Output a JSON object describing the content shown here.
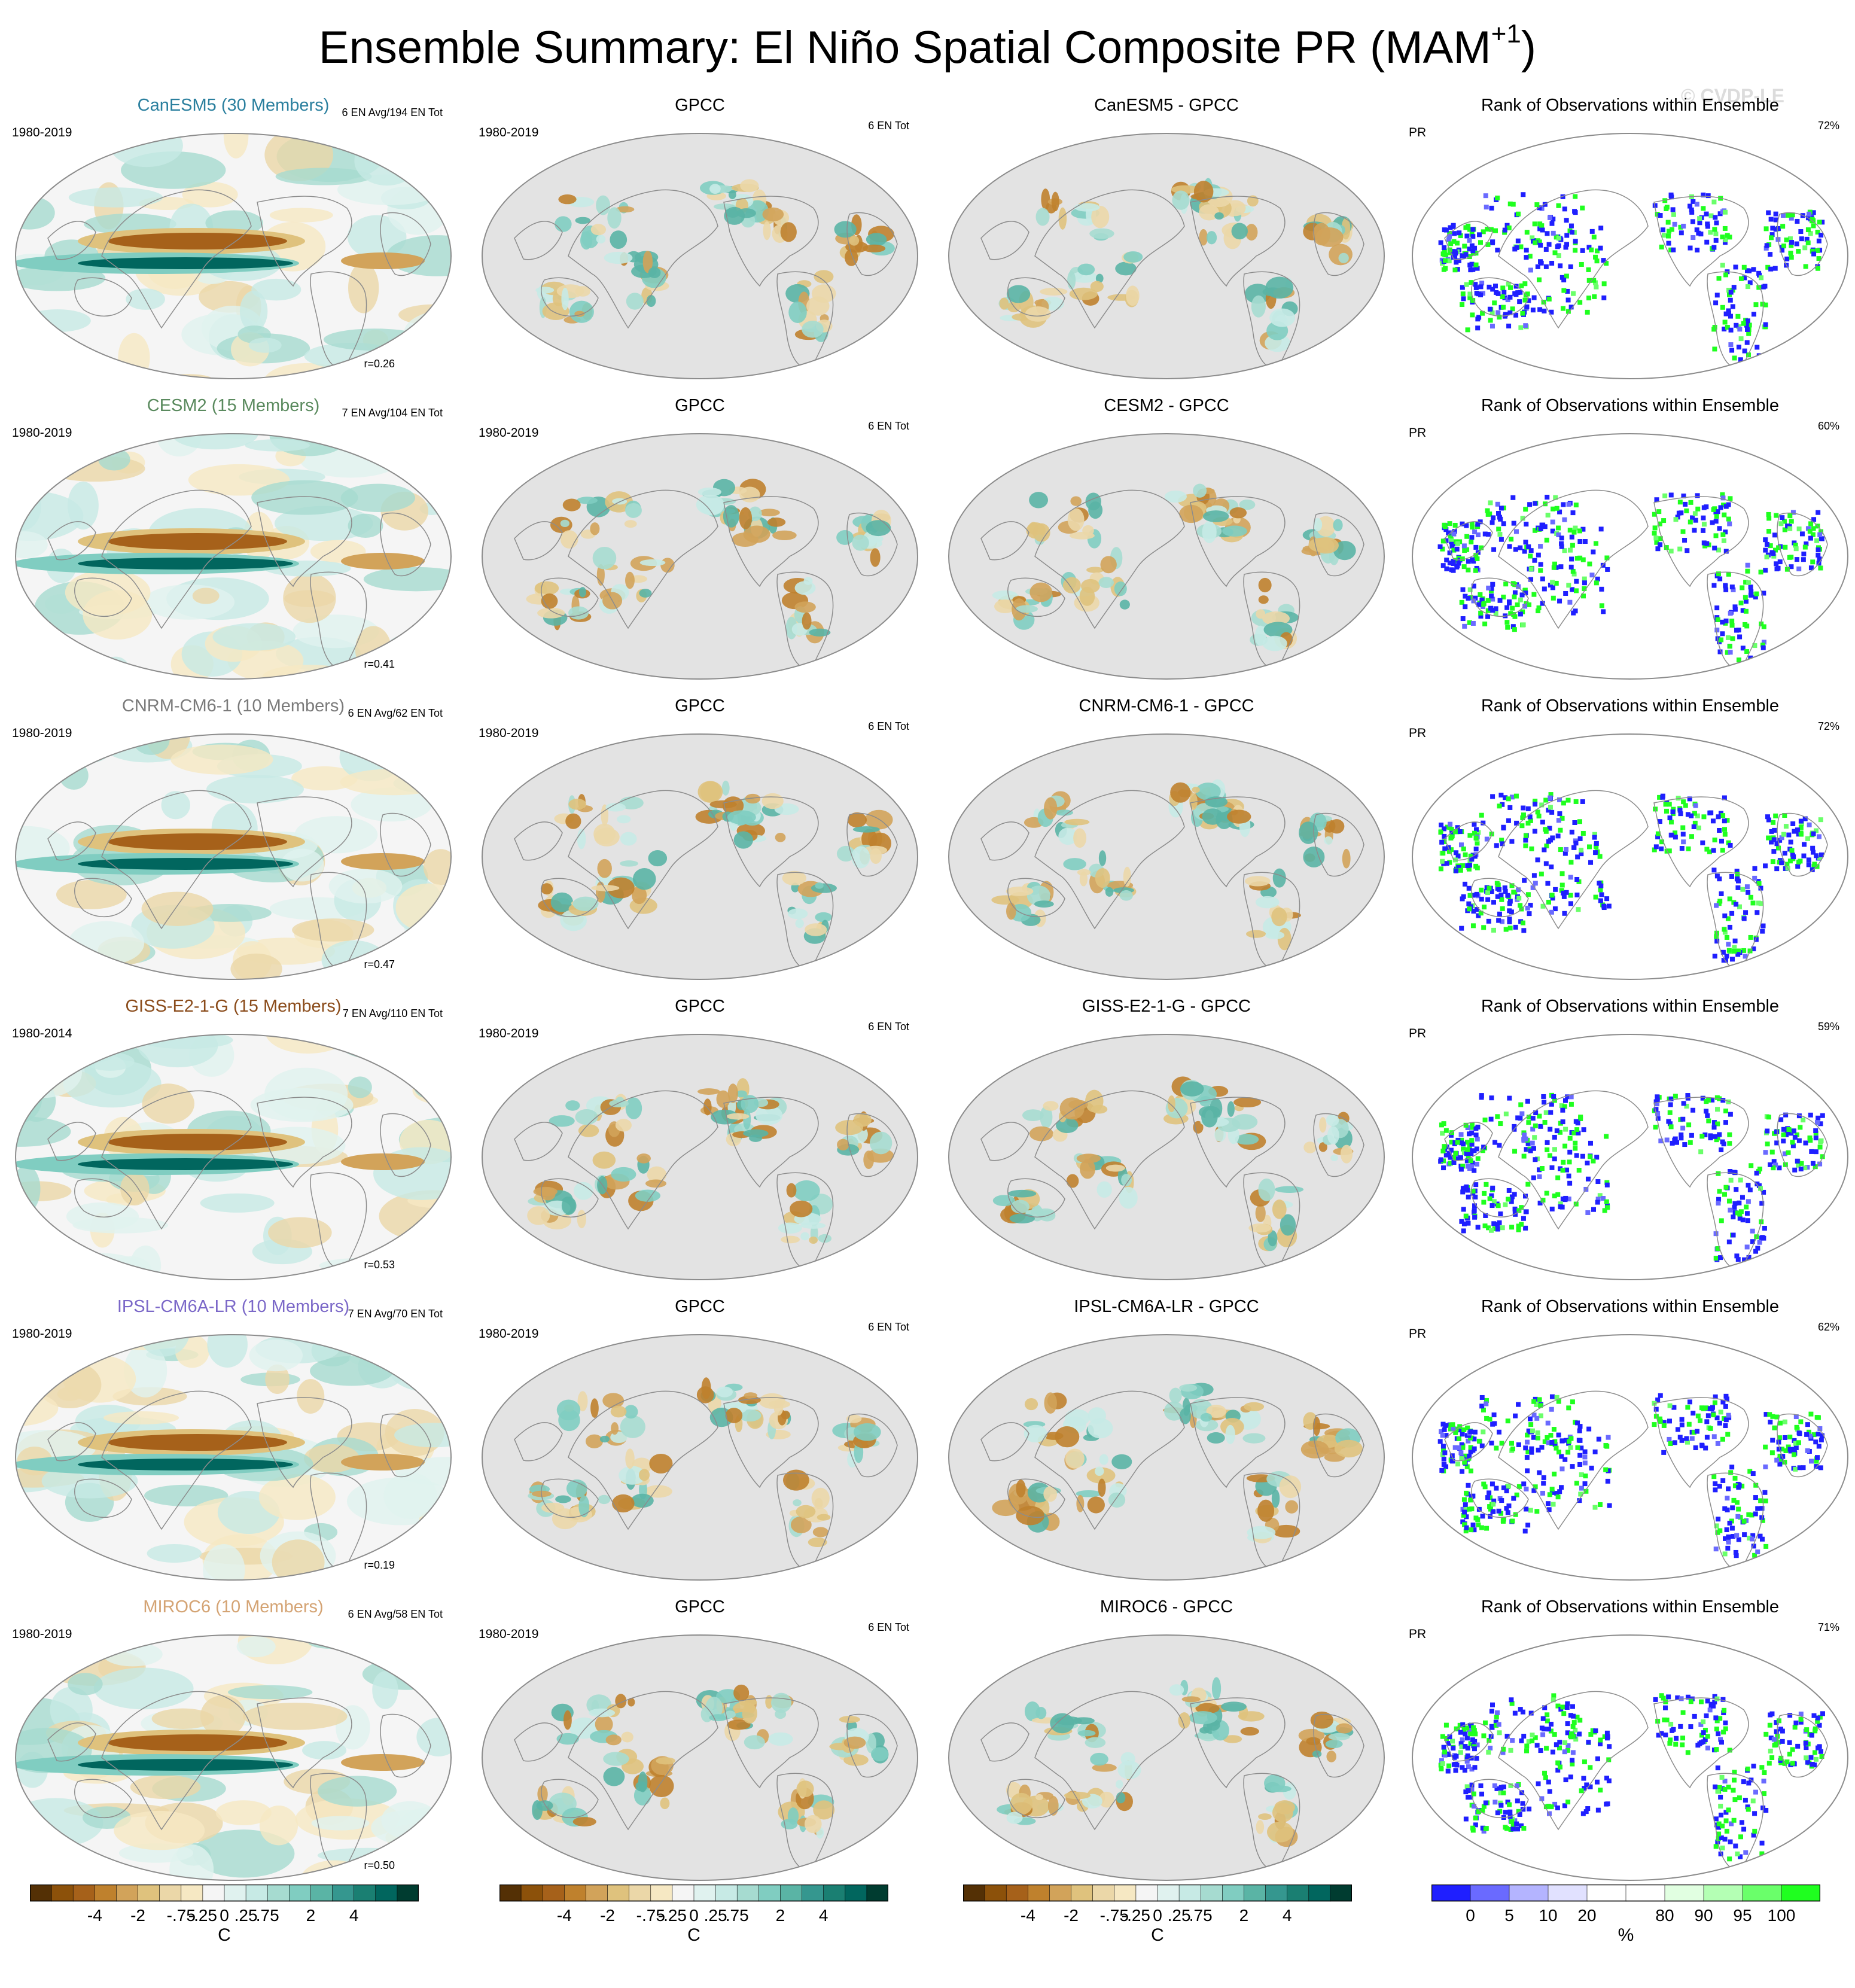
{
  "title": {
    "main": "Ensemble Summary: El Niño Spatial Composite PR (MAM",
    "sup": "+1",
    "close": ")"
  },
  "watermark": "© CVDP-LE",
  "colors": {
    "diverging": [
      "#543005",
      "#8c510a",
      "#a6611a",
      "#bf812d",
      "#d2a35a",
      "#dfc27d",
      "#ebd7a8",
      "#f6e8c3",
      "#f5f5f5",
      "#e0f2ef",
      "#c7eae5",
      "#a6dbd0",
      "#80cdc1",
      "#5ab4a5",
      "#35978f",
      "#1a7f72",
      "#01665e",
      "#003c30"
    ],
    "rank": [
      "#1f1fff",
      "#6a6aff",
      "#b4b4ff",
      "#e1e1ff",
      "#ffffff",
      "#ffffff",
      "#e1ffe1",
      "#b4ffb4",
      "#6aff6a",
      "#1fff1f"
    ],
    "ocean_gray": "#e3e3e3",
    "coast": "#8c8c8c"
  },
  "rows": [
    {
      "model": {
        "title": "CanESM5 (30 Members)",
        "color": "#2a7f9e",
        "years": "1980-2019",
        "count": "6 EN Avg/194 EN Tot",
        "corr": "r=0.26"
      },
      "obs": {
        "title": "GPCC",
        "years": "1980-2019",
        "count": "6 EN Tot"
      },
      "diff": {
        "title": "CanESM5 - GPCC"
      },
      "rank": {
        "title": "Rank of Observations within Ensemble",
        "var": "PR",
        "pct": "72%"
      }
    },
    {
      "model": {
        "title": "CESM2 (15 Members)",
        "color": "#5a8a5e",
        "years": "1980-2019",
        "count": "7 EN Avg/104 EN Tot",
        "corr": "r=0.41"
      },
      "obs": {
        "title": "GPCC",
        "years": "1980-2019",
        "count": "6 EN Tot"
      },
      "diff": {
        "title": "CESM2 - GPCC"
      },
      "rank": {
        "title": "Rank of Observations within Ensemble",
        "var": "PR",
        "pct": "60%"
      }
    },
    {
      "model": {
        "title": "CNRM-CM6-1 (10 Members)",
        "color": "#7a7a7a",
        "years": "1980-2019",
        "count": "6 EN Avg/62 EN Tot",
        "corr": "r=0.47"
      },
      "obs": {
        "title": "GPCC",
        "years": "1980-2019",
        "count": "6 EN Tot"
      },
      "diff": {
        "title": "CNRM-CM6-1 - GPCC"
      },
      "rank": {
        "title": "Rank of Observations within Ensemble",
        "var": "PR",
        "pct": "72%"
      }
    },
    {
      "model": {
        "title": "GISS-E2-1-G (15 Members)",
        "color": "#8a4b1a",
        "years": "1980-2014",
        "count": "7 EN Avg/110 EN Tot",
        "corr": "r=0.53"
      },
      "obs": {
        "title": "GPCC",
        "years": "1980-2019",
        "count": "6 EN Tot"
      },
      "diff": {
        "title": "GISS-E2-1-G - GPCC"
      },
      "rank": {
        "title": "Rank of Observations within Ensemble",
        "var": "PR",
        "pct": "59%"
      }
    },
    {
      "model": {
        "title": "IPSL-CM6A-LR (10 Members)",
        "color": "#7b68c8",
        "years": "1980-2019",
        "count": "7 EN Avg/70 EN Tot",
        "corr": "r=0.19"
      },
      "obs": {
        "title": "GPCC",
        "years": "1980-2019",
        "count": "6 EN Tot"
      },
      "diff": {
        "title": "IPSL-CM6A-LR - GPCC"
      },
      "rank": {
        "title": "Rank of Observations within Ensemble",
        "var": "PR",
        "pct": "62%"
      }
    },
    {
      "model": {
        "title": "MIROC6 (10 Members)",
        "color": "#d4a373",
        "years": "1980-2019",
        "count": "6 EN Avg/58 EN Tot",
        "corr": "r=0.50"
      },
      "obs": {
        "title": "GPCC",
        "years": "1980-2019",
        "count": "6 EN Tot"
      },
      "diff": {
        "title": "MIROC6 - GPCC"
      },
      "rank": {
        "title": "Rank of Observations within Ensemble",
        "var": "PR",
        "pct": "71%"
      }
    }
  ],
  "colorbars": {
    "anomaly": {
      "labels": [
        "-4",
        "-2",
        "-.75",
        "-.25",
        "0",
        ".25",
        ".75",
        "2",
        "4"
      ],
      "unit": "C"
    },
    "rank": {
      "labels": [
        "0",
        "5",
        "10",
        "20",
        "80",
        "90",
        "95",
        "100"
      ],
      "unit": "%"
    }
  }
}
